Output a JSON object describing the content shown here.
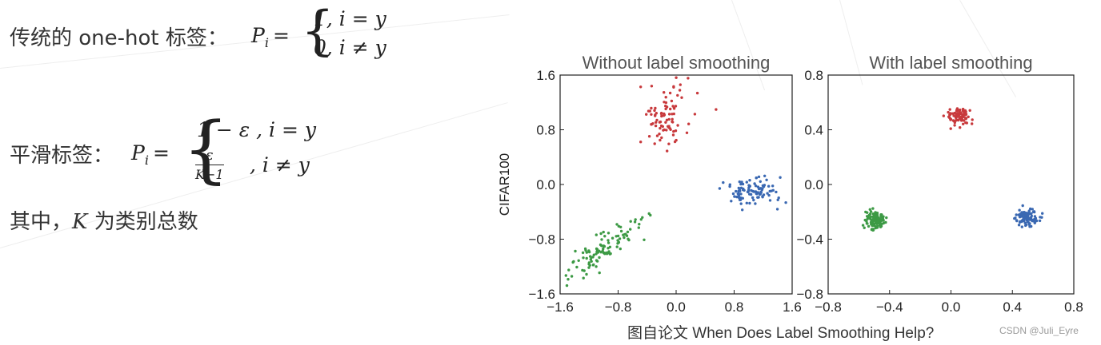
{
  "text": {
    "onehot_prefix": "传统的 one-hot 标签：",
    "onehot_lhs": "P",
    "onehot_lhs_sub": "i",
    "onehot_case1": "1,  i = y",
    "onehot_case2": "0,  i ≠ y",
    "smooth_prefix": "平滑标签：",
    "smooth_lhs": "P",
    "smooth_lhs_sub": "i",
    "smooth_case1": "1 − ε ,   i = y",
    "smooth_frac_num": "ε",
    "smooth_frac_den": "K−1",
    "smooth_case2": ",   i ≠ y",
    "where_prefix": "其中，",
    "where_var": "K",
    "where_suffix": " 为类别总数"
  },
  "caption": "图自论文 When Does Label Smoothing Help?",
  "watermark": "CSDN @Juli_Eyre",
  "colors": {
    "red": "#c8393c",
    "blue": "#3a68b2",
    "green": "#3d9a45"
  },
  "chart_data": [
    {
      "type": "scatter",
      "title": "Without label smoothing",
      "ylabel": "CIFAR100",
      "xlim": [
        -1.6,
        1.6
      ],
      "ylim": [
        -1.6,
        1.6
      ],
      "xticks": [
        "−1.6",
        "−0.8",
        "0.0",
        "0.8",
        "1.6"
      ],
      "yticks": [
        "1.6",
        "0.8",
        "0.0",
        "−0.8",
        "−1.6"
      ],
      "grid": false,
      "series": [
        {
          "color": "red",
          "center": [
            -0.15,
            1.0
          ],
          "spread": [
            0.18,
            0.25
          ],
          "count": 90
        },
        {
          "color": "blue",
          "center": [
            1.05,
            -0.1
          ],
          "spread": [
            0.2,
            0.11
          ],
          "count": 100
        },
        {
          "color": "green",
          "center": [
            -1.0,
            -0.95
          ],
          "spread": [
            0.22,
            0.22
          ],
          "count": 110
        }
      ]
    },
    {
      "type": "scatter",
      "title": "With label smoothing",
      "ylabel": "",
      "xlim": [
        -0.8,
        0.8
      ],
      "ylim": [
        -0.8,
        0.8
      ],
      "xticks": [
        "−0.8",
        "−0.4",
        "0.0",
        "0.4",
        "0.8"
      ],
      "yticks": [
        "0.8",
        "0.4",
        "0.0",
        "−0.4",
        "−0.8"
      ],
      "grid": false,
      "series": [
        {
          "color": "red",
          "center": [
            0.05,
            0.5
          ],
          "spread": [
            0.04,
            0.035
          ],
          "count": 90
        },
        {
          "color": "blue",
          "center": [
            0.5,
            -0.24
          ],
          "spread": [
            0.035,
            0.03
          ],
          "count": 100
        },
        {
          "color": "green",
          "center": [
            -0.5,
            -0.26
          ],
          "spread": [
            0.03,
            0.035
          ],
          "count": 110
        }
      ]
    }
  ]
}
